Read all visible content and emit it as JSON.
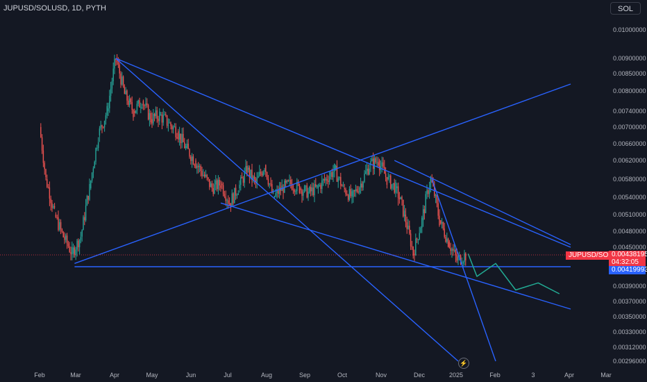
{
  "header": {
    "title": "JUPUSD/SOLUSD, 1D, PYTH",
    "symbol_button": "SOL"
  },
  "tags": {
    "pair_label": "JUPUSD/SOLUSD",
    "last_price": "0.00438195",
    "countdown": "04:32:05",
    "support_level": "0.00419993"
  },
  "icons": {
    "lightning": "lightning-icon"
  },
  "colors": {
    "background": "#141823",
    "up": "#26a69a",
    "down": "#ef5350",
    "trendline": "#2962ff",
    "projection": "#22ab94",
    "last_price": "#f23645",
    "level": "#2962ff"
  },
  "chart_data": {
    "type": "candlestick",
    "title": "JUPUSD/SOLUSD, 1D, PYTH",
    "y_ticks": [
      "0.01000000",
      "0.00900000",
      "0.00850000",
      "0.00800000",
      "0.00740000",
      "0.00700000",
      "0.00660000",
      "0.00620000",
      "0.00580000",
      "0.00540000",
      "0.00510000",
      "0.00480000",
      "0.00450000",
      "0.00390000",
      "0.00370000",
      "0.00350000",
      "0.00330000",
      "0.00312000",
      "0.00296000"
    ],
    "x_ticks": [
      "Feb",
      "Mar",
      "Apr",
      "May",
      "Jun",
      "Jul",
      "Aug",
      "Sep",
      "Oct",
      "Nov",
      "Dec",
      "2025",
      "Feb",
      "3",
      "Apr",
      "Mar"
    ],
    "close_path": [
      [
        "2024-01-31",
        0.007
      ],
      [
        "2024-02-05",
        0.0058
      ],
      [
        "2024-02-12",
        0.0051
      ],
      [
        "2024-02-19",
        0.0047
      ],
      [
        "2024-02-26",
        0.0044
      ],
      [
        "2024-03-04",
        0.0047
      ],
      [
        "2024-03-11",
        0.0056
      ],
      [
        "2024-03-18",
        0.0068
      ],
      [
        "2024-03-25",
        0.0074
      ],
      [
        "2024-04-01",
        0.009
      ],
      [
        "2024-04-08",
        0.0079
      ],
      [
        "2024-04-15",
        0.0074
      ],
      [
        "2024-04-22",
        0.0077
      ],
      [
        "2024-04-29",
        0.0072
      ],
      [
        "2024-05-06",
        0.0073
      ],
      [
        "2024-05-13",
        0.0071
      ],
      [
        "2024-05-20",
        0.0069
      ],
      [
        "2024-05-27",
        0.0065
      ],
      [
        "2024-06-03",
        0.0062
      ],
      [
        "2024-06-10",
        0.0059
      ],
      [
        "2024-06-17",
        0.0056
      ],
      [
        "2024-06-24",
        0.0057
      ],
      [
        "2024-07-01",
        0.0053
      ],
      [
        "2024-07-08",
        0.0056
      ],
      [
        "2024-07-15",
        0.006
      ],
      [
        "2024-07-22",
        0.0057
      ],
      [
        "2024-07-29",
        0.0061
      ],
      [
        "2024-08-05",
        0.0054
      ],
      [
        "2024-08-12",
        0.0056
      ],
      [
        "2024-08-19",
        0.0057
      ],
      [
        "2024-08-26",
        0.0056
      ],
      [
        "2024-09-02",
        0.0055
      ],
      [
        "2024-09-09",
        0.0056
      ],
      [
        "2024-09-16",
        0.0058
      ],
      [
        "2024-09-23",
        0.006
      ],
      [
        "2024-09-30",
        0.0056
      ],
      [
        "2024-10-07",
        0.0054
      ],
      [
        "2024-10-14",
        0.0057
      ],
      [
        "2024-10-21",
        0.0061
      ],
      [
        "2024-10-28",
        0.0062
      ],
      [
        "2024-11-04",
        0.0058
      ],
      [
        "2024-11-11",
        0.0056
      ],
      [
        "2024-11-18",
        0.0051
      ],
      [
        "2024-11-25",
        0.0044
      ],
      [
        "2024-12-02",
        0.005
      ],
      [
        "2024-12-09",
        0.0058
      ],
      [
        "2024-12-16",
        0.005
      ],
      [
        "2024-12-23",
        0.0046
      ],
      [
        "2024-12-30",
        0.0043
      ],
      [
        "2025-01-06",
        0.00438
      ]
    ],
    "projection": [
      [
        "2025-01-08",
        0.0044
      ],
      [
        "2025-01-15",
        0.00405
      ],
      [
        "2025-01-30",
        0.00425
      ],
      [
        "2025-02-15",
        0.00385
      ],
      [
        "2025-03-05",
        0.00395
      ],
      [
        "2025-03-22",
        0.0038
      ]
    ],
    "trendlines": [
      {
        "from": [
          "2024-04-01",
          0.009
        ],
        "to": [
          "2025-03-31",
          0.0045
        ]
      },
      {
        "from": [
          "2024-04-01",
          0.009
        ],
        "to": [
          "2024-12-31",
          0.00296
        ]
      },
      {
        "from": [
          "2024-02-28",
          0.00425
        ],
        "to": [
          "2025-03-31",
          0.0082
        ]
      },
      {
        "from": [
          "2024-06-24",
          0.0053
        ],
        "to": [
          "2025-03-31",
          0.0036
        ]
      },
      {
        "from": [
          "2024-11-10",
          0.0062
        ],
        "to": [
          "2025-03-31",
          0.00455
        ]
      },
      {
        "from": [
          "2024-12-10",
          0.0058
        ],
        "to": [
          "2025-01-30",
          0.00296
        ]
      },
      {
        "from": [
          "2024-02-28",
          0.0042
        ],
        "to": [
          "2025-03-31",
          0.0042
        ]
      }
    ],
    "last_price": 0.00438195,
    "support_level": 0.00419993,
    "grid": false
  }
}
